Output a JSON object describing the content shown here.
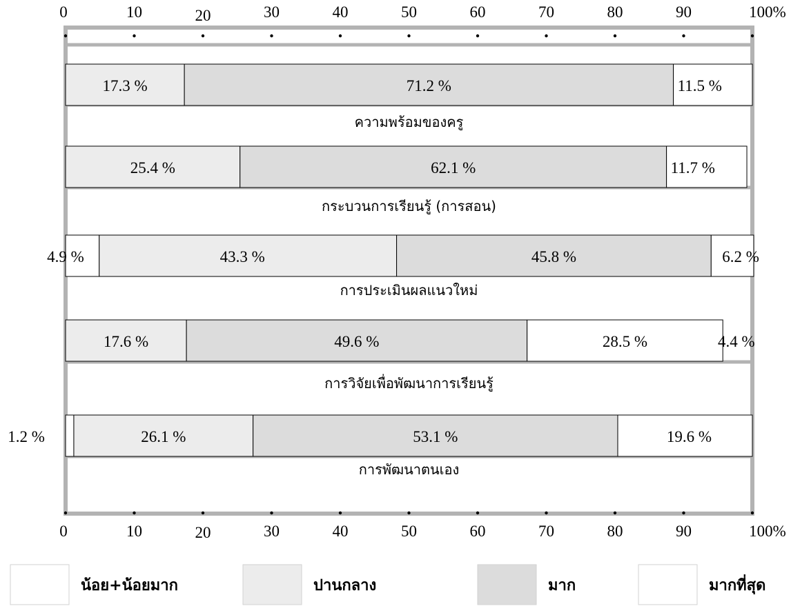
{
  "chart_data": {
    "type": "bar",
    "orientation": "horizontal",
    "stacked": true,
    "xlim": [
      0,
      100
    ],
    "x_ticks": [
      "0",
      "10",
      "20",
      "30",
      "40",
      "50",
      "60",
      "70",
      "80",
      "90",
      "100%"
    ],
    "categories": [
      "ความพร้อมของครู",
      "กระบวนการเรียนรู้ (การสอน)",
      "การประเมินผลแนวใหม่",
      "การวิจัยเพื่อพัฒนาการเรียนรู้",
      "การพัฒนาตนเอง"
    ],
    "series": [
      {
        "name": "น้อย+น้อยมาก",
        "color": "#ffffff",
        "values": [
          0,
          0,
          4.9,
          0,
          1.2
        ],
        "labels": [
          "",
          "",
          "4.9 %",
          "",
          "1.2 %"
        ]
      },
      {
        "name": "ปานกลาง",
        "color": "#ececec",
        "values": [
          17.3,
          25.4,
          43.3,
          17.6,
          26.1
        ],
        "labels": [
          "17.3 %",
          "25.4 %",
          "43.3 %",
          "17.6 %",
          "26.1 %"
        ]
      },
      {
        "name": "มาก",
        "color": "#dcdcdc",
        "values": [
          71.2,
          62.1,
          45.8,
          49.6,
          53.1
        ],
        "labels": [
          "71.2 %",
          "62.1 %",
          "45.8 %",
          "49.6 %",
          "53.1 %"
        ]
      },
      {
        "name": "มากที่สุด",
        "color": "#ffffff",
        "values": [
          11.5,
          11.7,
          6.2,
          28.5,
          19.6
        ],
        "labels": [
          "11.5 %",
          "11.7 %",
          "6.2 %",
          "28.5 %",
          "19.6 %"
        ]
      }
    ],
    "extra_labels": [
      "4.4 %"
    ],
    "legend_position": "bottom",
    "grid": false
  }
}
